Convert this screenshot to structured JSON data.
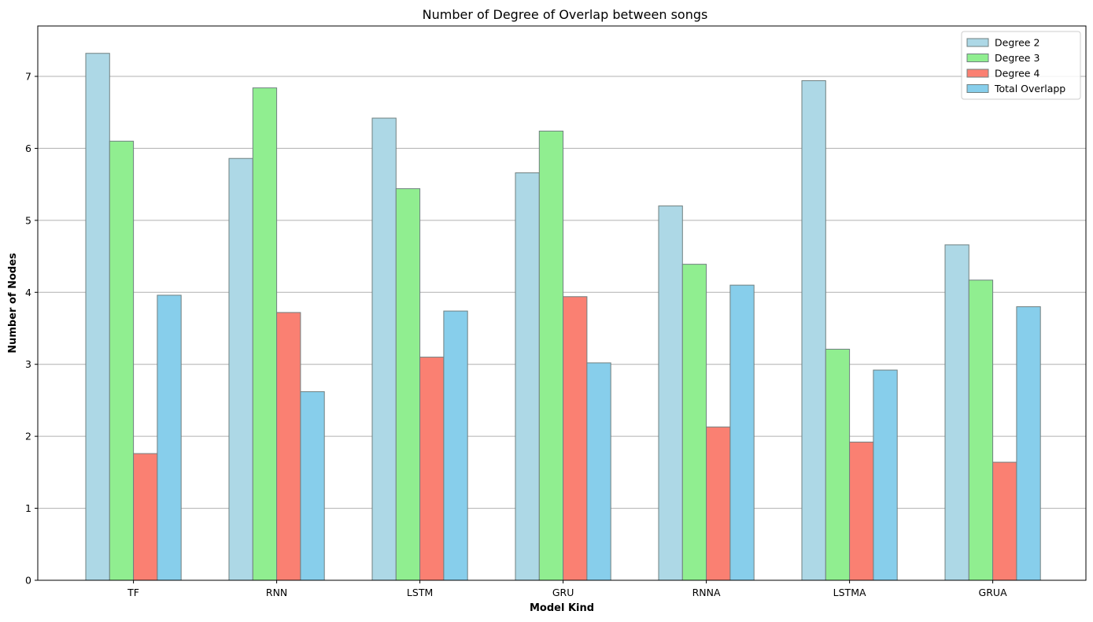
{
  "chart_data": {
    "type": "bar",
    "title": "Number of Degree of Overlap between songs",
    "xlabel": "Model Kind",
    "ylabel": "Number of Nodes",
    "categories": [
      "TF",
      "RNN",
      "LSTM",
      "GRU",
      "RNNA",
      "LSTMA",
      "GRUA"
    ],
    "ylim": [
      0,
      7.7
    ],
    "yticks": [
      0,
      1,
      2,
      3,
      4,
      5,
      6,
      7
    ],
    "grid": "y",
    "legend_position": "top-right",
    "series": [
      {
        "name": "Degree 2",
        "color": "#add8e6",
        "values": [
          7.32,
          5.86,
          6.42,
          5.66,
          5.2,
          6.94,
          4.66
        ]
      },
      {
        "name": "Degree 3",
        "color": "#90ee90",
        "values": [
          6.1,
          6.84,
          5.44,
          6.24,
          4.39,
          3.21,
          4.17
        ]
      },
      {
        "name": "Degree 4",
        "color": "#fa8072",
        "values": [
          1.76,
          3.72,
          3.1,
          3.94,
          2.13,
          1.92,
          1.64
        ]
      },
      {
        "name": "Total Overlapp",
        "color": "#87ceeb",
        "values": [
          3.96,
          2.62,
          3.74,
          3.02,
          4.1,
          2.92,
          3.8
        ]
      }
    ]
  }
}
